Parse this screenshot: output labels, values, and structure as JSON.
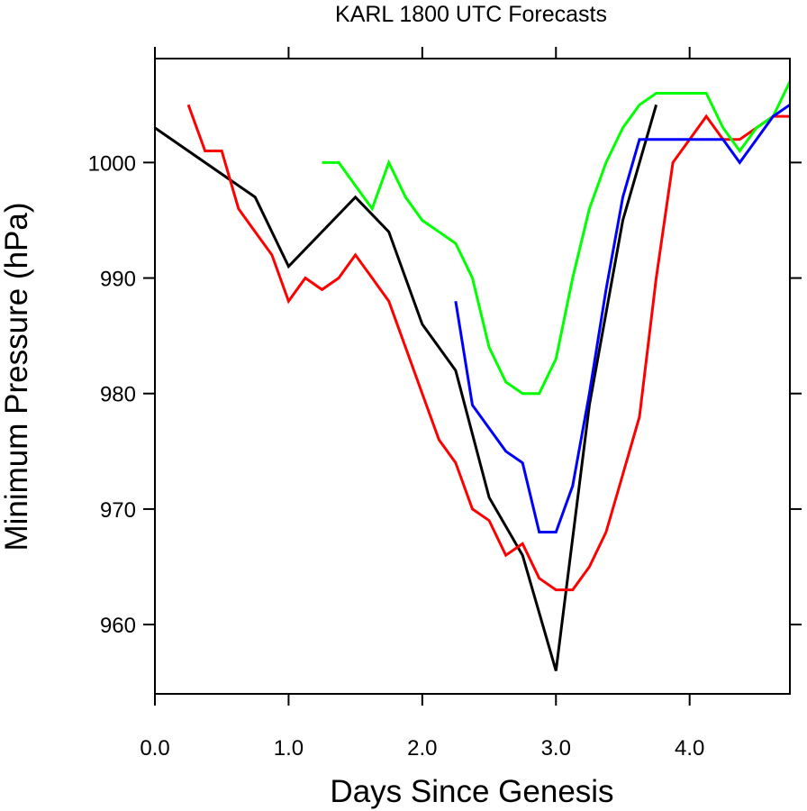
{
  "chart_data": {
    "type": "line",
    "title": "KARL 1800 UTC Forecasts",
    "xlabel": "Days Since Genesis",
    "ylabel": "Minimum Pressure (hPa)",
    "xlim": [
      0,
      4.75
    ],
    "ylim": [
      954,
      1009
    ],
    "x_ticks": [
      0,
      1,
      2,
      3,
      4
    ],
    "x_tick_labels": [
      "0.0",
      "1.0",
      "2.0",
      "3.0",
      "4.0"
    ],
    "y_ticks": [
      960,
      970,
      980,
      990,
      1000
    ],
    "y_tick_labels": [
      "960",
      "970",
      "980",
      "990",
      "1000"
    ],
    "grid": false,
    "legend": "none",
    "series": [
      {
        "color": "#000000",
        "x": [
          0.0,
          0.75,
          1.0,
          1.5,
          1.75,
          2.0,
          2.25,
          2.5,
          2.75,
          3.0,
          3.25,
          3.5,
          3.75
        ],
        "y": [
          1003,
          997,
          991,
          997,
          994,
          986,
          982,
          971,
          966,
          956,
          979,
          995,
          1005
        ]
      },
      {
        "color": "#ff0000",
        "x": [
          0.25,
          0.375,
          0.5,
          0.625,
          0.75,
          0.875,
          1.0,
          1.125,
          1.25,
          1.375,
          1.5,
          1.625,
          1.75,
          1.875,
          2.0,
          2.125,
          2.25,
          2.375,
          2.5,
          2.625,
          2.75,
          2.875,
          3.0,
          3.125,
          3.25,
          3.375,
          3.5,
          3.625,
          3.75,
          3.875,
          4.0,
          4.125,
          4.25,
          4.375,
          4.5,
          4.625,
          4.75
        ],
        "y": [
          1005,
          1001,
          1001,
          996,
          994,
          992,
          988,
          990,
          989,
          990,
          992,
          990,
          988,
          984,
          980,
          976,
          974,
          970,
          969,
          966,
          967,
          964,
          963,
          963,
          965,
          968,
          973,
          978,
          990,
          1000,
          1002,
          1004,
          1002,
          1002,
          1003,
          1004,
          1004
        ]
      },
      {
        "color": "#00ff00",
        "x": [
          1.25,
          1.375,
          1.5,
          1.625,
          1.75,
          1.875,
          2.0,
          2.125,
          2.25,
          2.375,
          2.5,
          2.625,
          2.75,
          2.875,
          3.0,
          3.125,
          3.25,
          3.375,
          3.5,
          3.625,
          3.75,
          3.875,
          4.0,
          4.125,
          4.25,
          4.375,
          4.5,
          4.625,
          4.75
        ],
        "y": [
          1000,
          1000,
          998,
          996,
          1000,
          997,
          995,
          994,
          993,
          990,
          984,
          981,
          980,
          980,
          983,
          990,
          996,
          1000,
          1003,
          1005,
          1006,
          1006,
          1006,
          1006,
          1003,
          1001,
          1003,
          1004,
          1007
        ]
      },
      {
        "color": "#0000ff",
        "x": [
          2.25,
          2.375,
          2.5,
          2.625,
          2.75,
          2.875,
          3.0,
          3.125,
          3.25,
          3.375,
          3.5,
          3.625,
          3.75,
          3.875,
          4.0,
          4.125,
          4.25,
          4.375,
          4.5,
          4.625,
          4.75
        ],
        "y": [
          988,
          979,
          977,
          975,
          974,
          968,
          968,
          972,
          980,
          989,
          997,
          1002,
          1002,
          1002,
          1002,
          1002,
          1002,
          1000,
          1002,
          1004,
          1005
        ]
      }
    ]
  }
}
